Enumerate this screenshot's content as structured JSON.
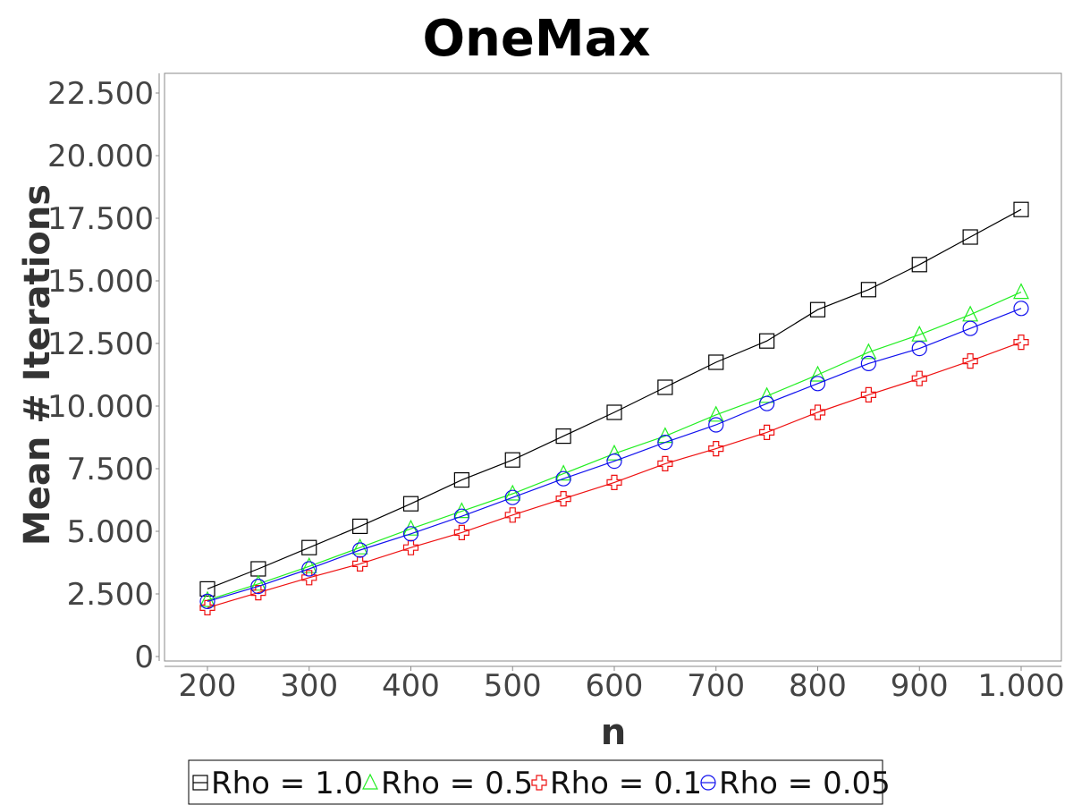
{
  "chart_data": {
    "type": "line",
    "title": "OneMax",
    "xlabel": "n",
    "ylabel": "Mean # Iterations",
    "x": [
      200,
      250,
      300,
      350,
      400,
      450,
      500,
      550,
      600,
      650,
      700,
      750,
      800,
      850,
      900,
      950,
      1000
    ],
    "x_ticks": [
      200,
      300,
      400,
      500,
      600,
      700,
      800,
      900,
      1000
    ],
    "x_tick_labels": [
      "200",
      "300",
      "400",
      "500",
      "600",
      "700",
      "800",
      "900",
      "1.000"
    ],
    "y_ticks": [
      0,
      2500,
      5000,
      7500,
      10000,
      12500,
      15000,
      17500,
      20000,
      22500
    ],
    "y_tick_labels": [
      "0",
      "2.500",
      "5.000",
      "7.500",
      "10.000",
      "12.500",
      "15.000",
      "17.500",
      "20.000",
      "22.500"
    ],
    "xlim": [
      160,
      1040
    ],
    "ylim": [
      0,
      23000
    ],
    "grid": false,
    "legend_position": "bottom",
    "series": [
      {
        "name": "Rho = 1.0",
        "color": "#000000",
        "marker": "square",
        "values": [
          2700,
          3500,
          4350,
          5200,
          6100,
          7050,
          7850,
          8800,
          9750,
          10750,
          11750,
          12600,
          13850,
          14650,
          15650,
          16750,
          17850
        ]
      },
      {
        "name": "Rho = 0.5",
        "color": "#22ee22",
        "marker": "triangle",
        "values": [
          2250,
          2900,
          3600,
          4350,
          5100,
          5800,
          6500,
          7300,
          8100,
          8800,
          9650,
          10400,
          11250,
          12150,
          12850,
          13650,
          14550
        ]
      },
      {
        "name": "Rho = 0.1",
        "color": "#ee1111",
        "marker": "cross",
        "values": [
          1950,
          2550,
          3150,
          3700,
          4350,
          4950,
          5650,
          6300,
          6950,
          7700,
          8300,
          8950,
          9750,
          10450,
          11100,
          11800,
          12550
        ]
      },
      {
        "name": "Rho = 0.05",
        "color": "#1111ee",
        "marker": "circle",
        "values": [
          2200,
          2800,
          3500,
          4250,
          4900,
          5600,
          6350,
          7100,
          7800,
          8550,
          9250,
          10100,
          10900,
          11700,
          12300,
          13100,
          13900
        ]
      }
    ]
  }
}
